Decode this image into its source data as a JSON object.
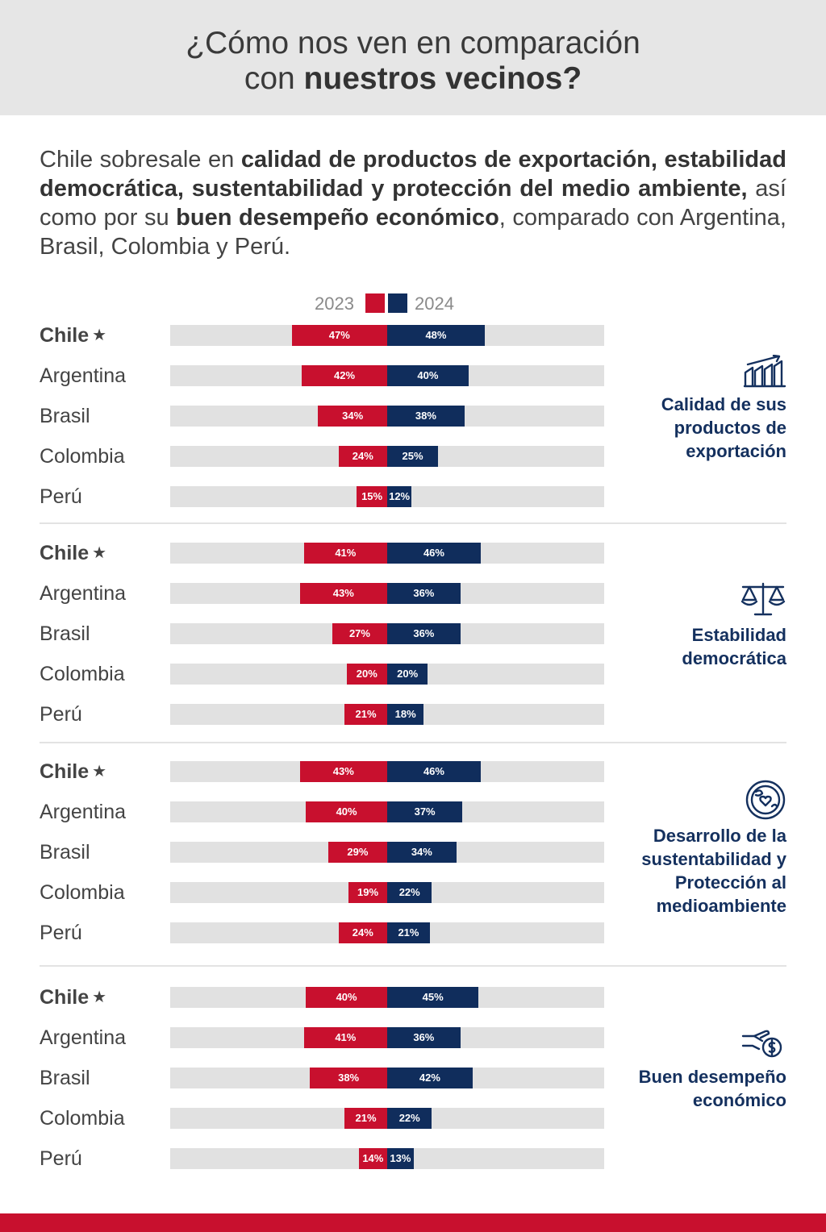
{
  "title": {
    "line1": "¿Cómo nos ven en comparación",
    "line2_plain": "con ",
    "line2_bold": "nuestros vecinos?"
  },
  "intro": [
    {
      "t": "Chile sobresale en ",
      "b": false
    },
    {
      "t": "calidad de productos de exportación, estabilidad democrática, sustentabilidad y protección del medio ambiente,",
      "b": true
    },
    {
      "t": " así como por su ",
      "b": false
    },
    {
      "t": "buen desempeño económico",
      "b": true
    },
    {
      "t": ", comparado con Argentina, Brasil, Colombia y Perú.",
      "b": false
    }
  ],
  "legend": {
    "label_2023": "2023",
    "label_2024": "2024"
  },
  "colors": {
    "y2023": "#c8102e",
    "y2024": "#102d5c",
    "track": "#e1e1e1",
    "category": "#14305e"
  },
  "star": "★",
  "chart_data": [
    {
      "type": "bar",
      "title": "Calidad de sus productos de exportación",
      "title_lines": [
        "Calidad de sus",
        "productos de",
        "exportación"
      ],
      "icon": "chart-growth-icon",
      "categories": [
        "Chile",
        "Argentina",
        "Brasil",
        "Colombia",
        "Perú"
      ],
      "series": [
        {
          "name": "2023",
          "values": [
            47,
            42,
            34,
            24,
            15
          ]
        },
        {
          "name": "2024",
          "values": [
            48,
            40,
            38,
            25,
            12
          ]
        }
      ],
      "ylim": [
        0,
        100
      ]
    },
    {
      "type": "bar",
      "title": "Estabilidad democrática",
      "title_lines": [
        "Estabilidad",
        "democrática"
      ],
      "icon": "scales-icon",
      "categories": [
        "Chile",
        "Argentina",
        "Brasil",
        "Colombia",
        "Perú"
      ],
      "series": [
        {
          "name": "2023",
          "values": [
            41,
            43,
            27,
            20,
            21
          ]
        },
        {
          "name": "2024",
          "values": [
            46,
            36,
            36,
            20,
            18
          ]
        }
      ],
      "ylim": [
        0,
        100
      ]
    },
    {
      "type": "bar",
      "title": "Desarrollo de la sustentabilidad y Protección al medioambiente",
      "title_lines": [
        "Desarrollo de la",
        "sustentabilidad y",
        "Protección al",
        "medioambiente"
      ],
      "icon": "globe-heart-icon",
      "categories": [
        "Chile",
        "Argentina",
        "Brasil",
        "Colombia",
        "Perú"
      ],
      "series": [
        {
          "name": "2023",
          "values": [
            43,
            40,
            29,
            19,
            24
          ]
        },
        {
          "name": "2024",
          "values": [
            46,
            37,
            34,
            22,
            21
          ]
        }
      ],
      "ylim": [
        0,
        100
      ]
    },
    {
      "type": "bar",
      "title": "Buen desempeño económico",
      "title_lines": [
        "Buen desempeño",
        "económico"
      ],
      "icon": "hand-coin-icon",
      "categories": [
        "Chile",
        "Argentina",
        "Brasil",
        "Colombia",
        "Perú"
      ],
      "series": [
        {
          "name": "2023",
          "values": [
            40,
            41,
            38,
            21,
            14
          ]
        },
        {
          "name": "2024",
          "values": [
            45,
            36,
            42,
            22,
            13
          ]
        }
      ],
      "ylim": [
        0,
        100
      ]
    }
  ]
}
